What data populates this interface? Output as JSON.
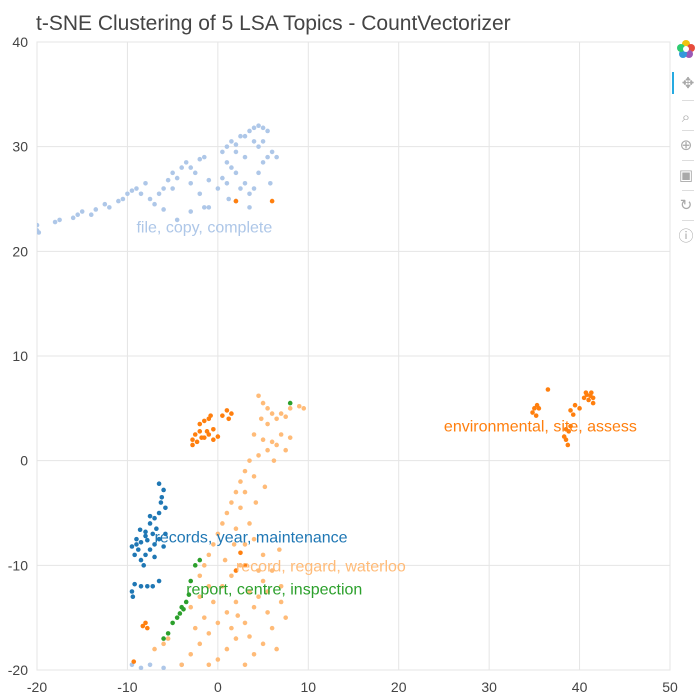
{
  "chart_data": {
    "type": "scatter",
    "title": "t-SNE Clustering of 5 LSA Topics - CountVectorizer",
    "xlim": [
      -20,
      50
    ],
    "ylim": [
      -20,
      40
    ],
    "x_ticks": [
      -20,
      -10,
      0,
      10,
      20,
      30,
      40,
      50
    ],
    "y_ticks": [
      -20,
      -10,
      0,
      10,
      20,
      30,
      40
    ],
    "x_tick_labels": [
      "-20",
      "-10",
      "0",
      "10",
      "20",
      "30",
      "40",
      "50"
    ],
    "y_tick_labels": [
      "-20",
      "-10",
      "0",
      "10",
      "20",
      "30",
      "40"
    ],
    "grid": true,
    "series": [
      {
        "color": "#aec7e8",
        "label": "file, copy, complete",
        "label_pos": [
          -9,
          21.8
        ],
        "points": [
          [
            -20,
            22
          ],
          [
            -20,
            22.5
          ],
          [
            -19.8,
            21.8
          ],
          [
            -18,
            22.8
          ],
          [
            -17.5,
            23
          ],
          [
            -16,
            23.2
          ],
          [
            -15.5,
            23.5
          ],
          [
            -15,
            23.8
          ],
          [
            -14,
            23.5
          ],
          [
            -13.5,
            24
          ],
          [
            -12.5,
            24.5
          ],
          [
            -12,
            24.2
          ],
          [
            -11,
            24.8
          ],
          [
            -10.5,
            25
          ],
          [
            -10,
            25.5
          ],
          [
            -9.5,
            25.8
          ],
          [
            -9,
            26
          ],
          [
            -8.5,
            25.5
          ],
          [
            -8,
            26.5
          ],
          [
            -7.5,
            25
          ],
          [
            -7,
            24.5
          ],
          [
            -6.5,
            25.5
          ],
          [
            -6,
            26
          ],
          [
            -5.5,
            26.8
          ],
          [
            -5,
            27.5
          ],
          [
            -4.5,
            27
          ],
          [
            -4,
            28
          ],
          [
            -3.5,
            28.5
          ],
          [
            -3,
            28
          ],
          [
            -2.5,
            27.5
          ],
          [
            -2,
            28.8
          ],
          [
            -1.5,
            29
          ],
          [
            -1,
            24.2
          ],
          [
            -1.5,
            24.2
          ],
          [
            -3,
            23.8
          ],
          [
            -4.5,
            23
          ],
          [
            -6,
            24
          ],
          [
            -5,
            26
          ],
          [
            -3,
            26.5
          ],
          [
            0,
            26
          ],
          [
            0.5,
            27
          ],
          [
            1,
            26.5
          ],
          [
            1.5,
            28
          ],
          [
            2,
            27.5
          ],
          [
            2.5,
            26
          ],
          [
            3,
            26.5
          ],
          [
            3.5,
            25.5
          ],
          [
            4,
            26
          ],
          [
            4.5,
            27.5
          ],
          [
            5,
            28.5
          ],
          [
            5.5,
            29
          ],
          [
            6,
            29.5
          ],
          [
            6.5,
            29
          ],
          [
            0.5,
            29.5
          ],
          [
            1,
            30
          ],
          [
            1.5,
            30.5
          ],
          [
            2,
            30.2
          ],
          [
            2.5,
            31
          ],
          [
            3,
            31
          ],
          [
            3.5,
            31.5
          ],
          [
            4,
            31.8
          ],
          [
            4.5,
            32
          ],
          [
            5,
            31.8
          ],
          [
            5.5,
            31.5
          ],
          [
            4,
            30.5
          ],
          [
            4.5,
            30
          ],
          [
            5,
            30.5
          ],
          [
            3,
            29
          ],
          [
            2,
            29.5
          ],
          [
            1,
            28.5
          ],
          [
            1.2,
            25
          ],
          [
            2,
            24.8
          ],
          [
            3.5,
            24.2
          ],
          [
            -2,
            25.5
          ],
          [
            -1,
            26.8
          ],
          [
            5.8,
            26.5
          ],
          [
            -9.5,
            -19.5
          ],
          [
            -8.5,
            -19.8
          ],
          [
            -7.5,
            -19.5
          ],
          [
            -6,
            -19.8
          ],
          [
            -4,
            -19.5
          ]
        ]
      },
      {
        "color": "#1f77b4",
        "label": "records, year, maintenance",
        "label_pos": [
          -7,
          -7.8
        ],
        "points": [
          [
            -6.5,
            -2.2
          ],
          [
            -6.2,
            -3.5
          ],
          [
            -6,
            -2.8
          ],
          [
            -5.8,
            -4.5
          ],
          [
            -6.5,
            -5
          ],
          [
            -7,
            -5.5
          ],
          [
            -7.5,
            -6
          ],
          [
            -6.8,
            -6.5
          ],
          [
            -7.2,
            -7
          ],
          [
            -8,
            -7.2
          ],
          [
            -8.5,
            -7.8
          ],
          [
            -9,
            -8
          ],
          [
            -9,
            -7.5
          ],
          [
            -8.8,
            -8.5
          ],
          [
            -9.2,
            -9
          ],
          [
            -8.5,
            -9.5
          ],
          [
            -8,
            -9
          ],
          [
            -7.5,
            -8.5
          ],
          [
            -7,
            -8
          ],
          [
            -6.5,
            -7.5
          ],
          [
            -7,
            -9.2
          ],
          [
            -8,
            -6.8
          ],
          [
            -9.5,
            -8.2
          ],
          [
            -8.2,
            -10
          ],
          [
            -9.2,
            -11.8
          ],
          [
            -9.5,
            -12.5
          ],
          [
            -9.4,
            -13
          ],
          [
            -8.5,
            -12
          ],
          [
            -7.8,
            -12
          ],
          [
            -7.2,
            -12
          ],
          [
            -6.5,
            -11.5
          ],
          [
            -5.8,
            -7
          ],
          [
            -6,
            -8.2
          ],
          [
            -7.8,
            -7.6
          ],
          [
            -8.6,
            -6.6
          ],
          [
            -7.5,
            -5.3
          ],
          [
            -6.3,
            -4
          ]
        ]
      },
      {
        "color": "#ff7f0e",
        "label": "environmental, site, assess",
        "label_pos": [
          25,
          2.8
        ],
        "points": [
          [
            -2.5,
            2.5
          ],
          [
            -2.8,
            2
          ],
          [
            -2.3,
            1.8
          ],
          [
            -2,
            2.8
          ],
          [
            -1.5,
            2.2
          ],
          [
            -1,
            2.5
          ],
          [
            -0.5,
            2
          ],
          [
            0,
            2.3
          ],
          [
            -0.5,
            3
          ],
          [
            -2,
            3.5
          ],
          [
            -1.5,
            3.8
          ],
          [
            -1,
            4
          ],
          [
            -0.8,
            4.3
          ],
          [
            1,
            4.8
          ],
          [
            1.5,
            4.5
          ],
          [
            0.5,
            4.3
          ],
          [
            1.2,
            4
          ],
          [
            -2.8,
            1.5
          ],
          [
            -1.8,
            2.2
          ],
          [
            -1.2,
            2.8
          ],
          [
            35,
            5
          ],
          [
            35.3,
            5.3
          ],
          [
            34.8,
            4.6
          ],
          [
            35.2,
            4.3
          ],
          [
            35.5,
            5
          ],
          [
            36.5,
            6.8
          ],
          [
            39,
            4.8
          ],
          [
            39.5,
            5.3
          ],
          [
            39.3,
            4.4
          ],
          [
            40,
            5
          ],
          [
            40.5,
            6
          ],
          [
            40.8,
            6.3
          ],
          [
            41,
            5.8
          ],
          [
            41.2,
            6.2
          ],
          [
            41.5,
            5.5
          ],
          [
            41.5,
            6
          ],
          [
            40.7,
            6.5
          ],
          [
            41.3,
            6.5
          ],
          [
            38.5,
            2
          ],
          [
            38.7,
            1.5
          ],
          [
            38.3,
            2.3
          ],
          [
            38.8,
            2.8
          ],
          [
            38.5,
            3
          ],
          [
            39,
            3.3
          ],
          [
            3,
            -10
          ],
          [
            2,
            -10.5
          ],
          [
            6,
            24.8
          ],
          [
            2,
            24.8
          ],
          [
            -7.8,
            -16
          ],
          [
            -8.3,
            -15.8
          ],
          [
            -8,
            -15.5
          ],
          [
            -9.3,
            -19.2
          ],
          [
            2.5,
            -8.8
          ]
        ]
      },
      {
        "color": "#ffbb78",
        "label": "record, regard, waterloo",
        "label_pos": [
          2,
          -10.6
        ],
        "points": [
          [
            4.5,
            6.2
          ],
          [
            5,
            5.5
          ],
          [
            5.5,
            5
          ],
          [
            6,
            4.5
          ],
          [
            4.8,
            4
          ],
          [
            5.5,
            3.5
          ],
          [
            6.5,
            4
          ],
          [
            7,
            4.5
          ],
          [
            7.5,
            4.2
          ],
          [
            8,
            5
          ],
          [
            9,
            5.2
          ],
          [
            9.5,
            5
          ],
          [
            4,
            2.5
          ],
          [
            5,
            2
          ],
          [
            6,
            1.8
          ],
          [
            7,
            2.5
          ],
          [
            6.5,
            1.5
          ],
          [
            5.5,
            1
          ],
          [
            4.5,
            0.5
          ],
          [
            3.5,
            0
          ],
          [
            3,
            -1
          ],
          [
            2.5,
            -2
          ],
          [
            2,
            -3
          ],
          [
            1.5,
            -4
          ],
          [
            1,
            -5
          ],
          [
            0.5,
            -6
          ],
          [
            0,
            -7
          ],
          [
            -0.5,
            -8
          ],
          [
            -1,
            -9
          ],
          [
            -1.5,
            -10
          ],
          [
            -2,
            -11
          ],
          [
            4,
            -1.5
          ],
          [
            3,
            -3
          ],
          [
            2.5,
            -4.5
          ],
          [
            3.5,
            -6
          ],
          [
            4,
            -7.5
          ],
          [
            5,
            -9
          ],
          [
            6,
            -10.5
          ],
          [
            7,
            -12
          ],
          [
            5,
            -11.5
          ],
          [
            3.5,
            -12.5
          ],
          [
            2,
            -13.5
          ],
          [
            1,
            -14.5
          ],
          [
            0,
            -15.5
          ],
          [
            -1,
            -16.5
          ],
          [
            -2,
            -17.5
          ],
          [
            -3,
            -18.5
          ],
          [
            -4,
            -19.5
          ],
          [
            4,
            -14
          ],
          [
            5.5,
            -14.5
          ],
          [
            7,
            -13.5
          ],
          [
            3,
            -15.5
          ],
          [
            2,
            -17
          ],
          [
            1,
            -18
          ],
          [
            0,
            -19
          ],
          [
            -1,
            -19.5
          ],
          [
            6,
            -16
          ],
          [
            5,
            -17.5
          ],
          [
            4,
            -18.5
          ],
          [
            3,
            -19.5
          ],
          [
            7.5,
            -15
          ],
          [
            6.5,
            -18
          ],
          [
            -5.5,
            -17
          ],
          [
            -6,
            -17.5
          ],
          [
            -7,
            -18
          ],
          [
            0.5,
            -12
          ],
          [
            1.5,
            -11
          ],
          [
            2.5,
            -10
          ],
          [
            -1,
            -12
          ],
          [
            -2,
            -13
          ],
          [
            -3,
            -14
          ],
          [
            -1.5,
            -15
          ],
          [
            7.5,
            1
          ],
          [
            8,
            2.2
          ],
          [
            6.2,
            0
          ],
          [
            5.2,
            -2.5
          ],
          [
            4.2,
            -4
          ],
          [
            1.8,
            -8
          ],
          [
            0.8,
            -9.5
          ],
          [
            3,
            -8
          ],
          [
            2,
            -6.5
          ],
          [
            6.8,
            -8.5
          ],
          [
            4.5,
            -10.5
          ],
          [
            3.5,
            -16.8
          ],
          [
            -2.5,
            -16
          ],
          [
            1.5,
            -16
          ],
          [
            5.5,
            -12.5
          ],
          [
            4.5,
            -13
          ],
          [
            2.2,
            -14.8
          ],
          [
            -0.5,
            -13.5
          ]
        ]
      },
      {
        "color": "#2ca02c",
        "label": "report, centre, inspection",
        "label_pos": [
          -3.5,
          -12.8
        ],
        "points": [
          [
            8,
            5.5
          ],
          [
            -2,
            -9.5
          ],
          [
            -2.5,
            -10
          ],
          [
            -3,
            -11.5
          ],
          [
            -3.2,
            -12.8
          ],
          [
            -3.5,
            -13.5
          ],
          [
            -4,
            -14
          ],
          [
            -4.5,
            -15
          ],
          [
            -5,
            -15.5
          ],
          [
            -5.5,
            -16.5
          ],
          [
            -6,
            -17
          ],
          [
            -3.8,
            -14.2
          ],
          [
            -4.2,
            -14.6
          ]
        ]
      }
    ]
  },
  "toolbar": {
    "icons": [
      "bokeh-logo-icon",
      "pan-icon",
      "box-zoom-icon",
      "wheel-zoom-icon",
      "save-icon",
      "reset-icon",
      "help-icon"
    ]
  }
}
